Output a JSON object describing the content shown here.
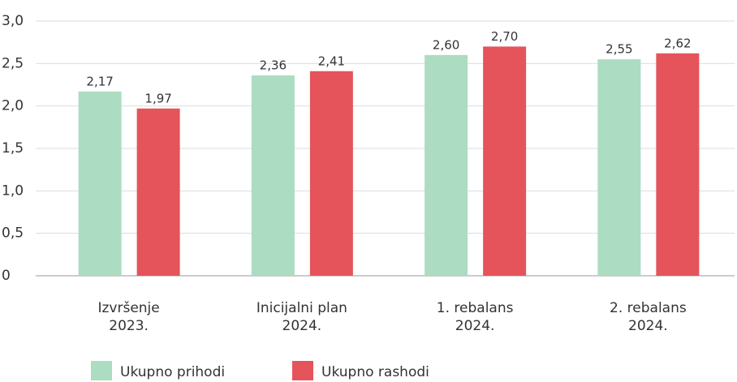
{
  "chart_data": {
    "type": "bar",
    "categories": [
      "Izvršenje\n2023.",
      "Inicijalni plan\n2024.",
      "1. rebalans\n2024.",
      "2. rebalans\n2024."
    ],
    "series": [
      {
        "name": "Ukupno prihodi",
        "color": "#acdcc1",
        "values": [
          2.17,
          2.36,
          2.6,
          2.55
        ],
        "value_labels": [
          "2,17",
          "2,36",
          "2,60",
          "2,55"
        ]
      },
      {
        "name": "Ukupno rashodi",
        "color": "#e4545a",
        "values": [
          1.97,
          2.41,
          2.7,
          2.62
        ],
        "value_labels": [
          "1,97",
          "2,41",
          "2,70",
          "2,62"
        ]
      }
    ],
    "ylim": [
      0,
      3.0
    ],
    "yticks": [
      0,
      {
        "value": 0.5,
        "label": "0,5"
      },
      {
        "value": 1.0,
        "label": "1,0"
      },
      {
        "value": 1.5,
        "label": "1,5"
      },
      {
        "value": 2.0,
        "label": "2,0"
      },
      {
        "value": 2.5,
        "label": "2,5"
      },
      {
        "value": 3.0,
        "label": "3,0"
      }
    ],
    "grid": true,
    "legend": "bottom"
  }
}
